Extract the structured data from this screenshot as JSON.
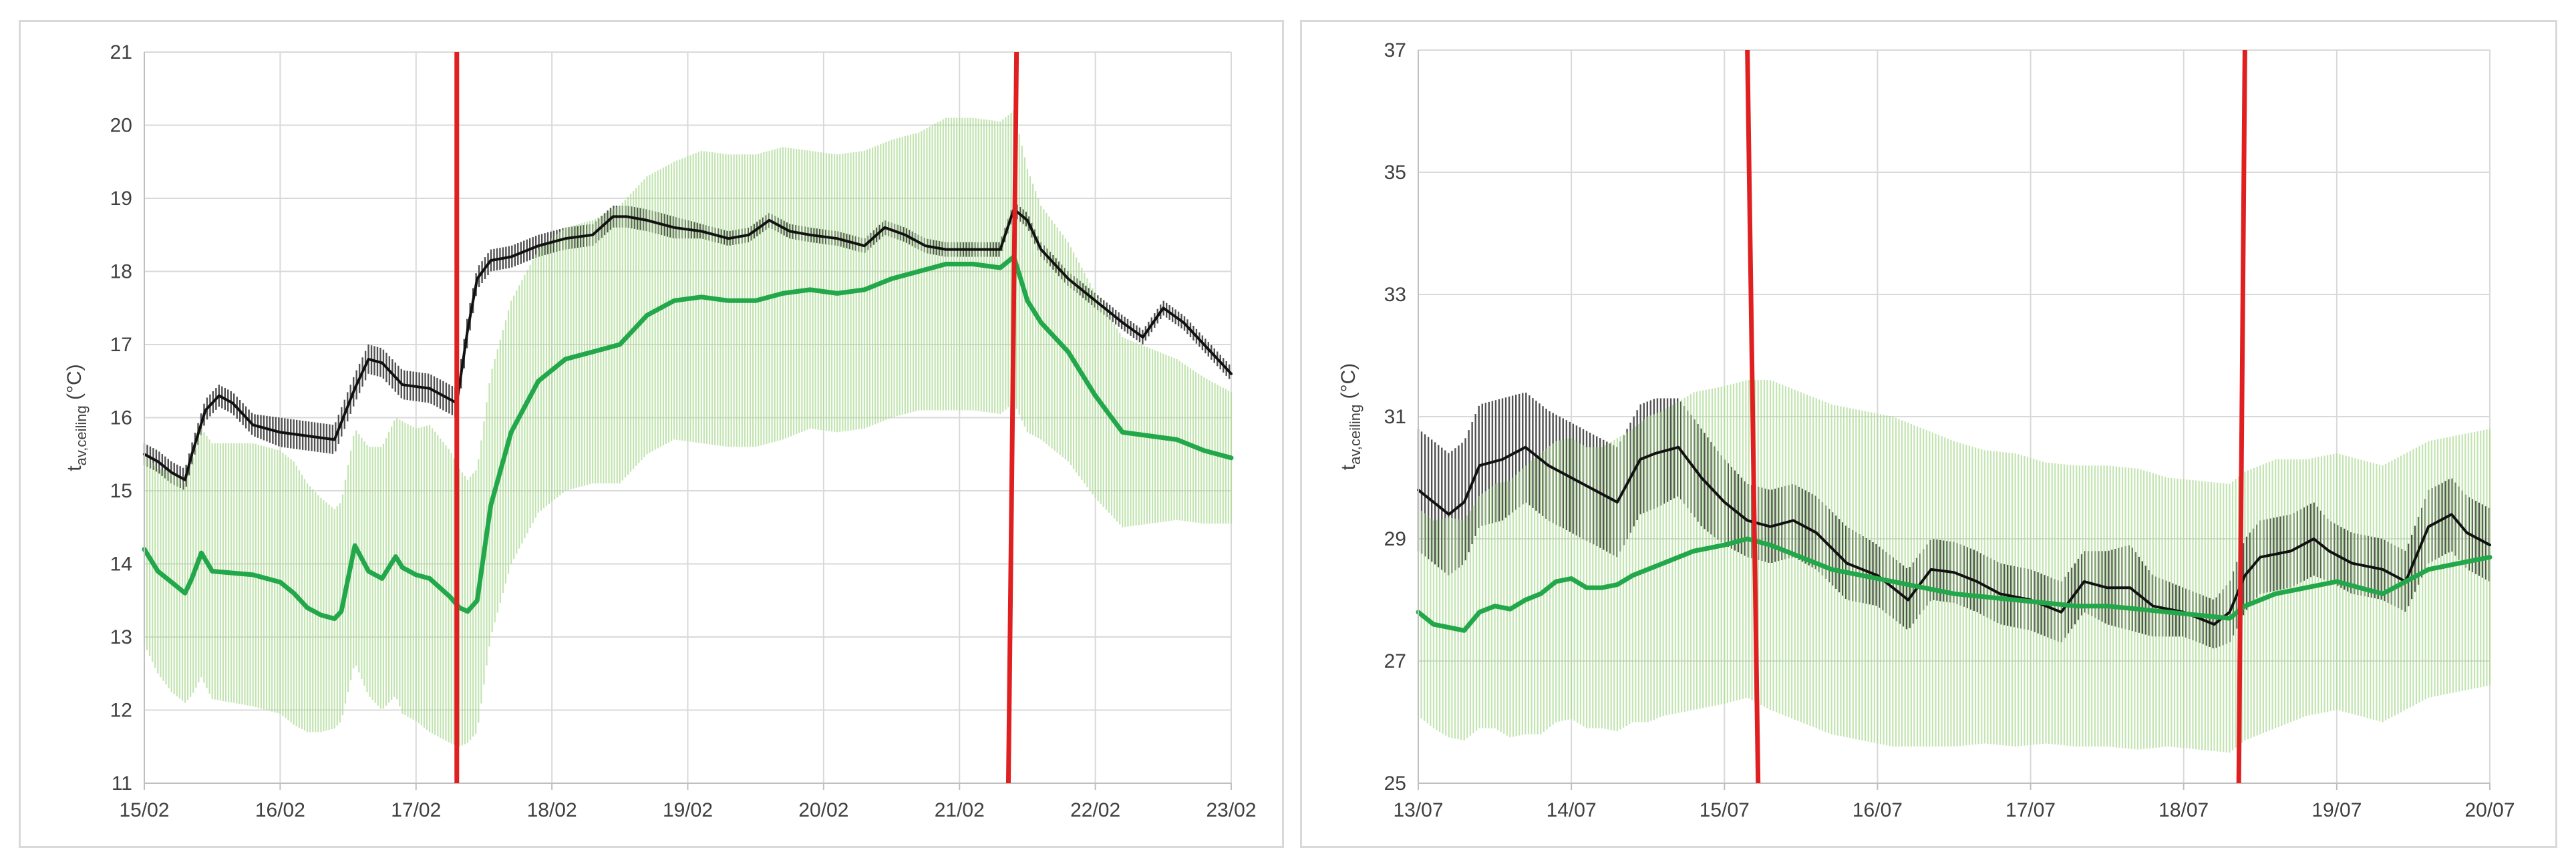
{
  "chart_data": [
    {
      "type": "line",
      "ylabel": {
        "main": "t",
        "sub": "av,ceiling",
        "unit": " (°C)"
      },
      "ylim": [
        11,
        21
      ],
      "yticks": [
        11,
        12,
        13,
        14,
        15,
        16,
        17,
        18,
        19,
        20,
        21
      ],
      "xlim": [
        0,
        8
      ],
      "xtick_labels": [
        "15/02",
        "16/02",
        "17/02",
        "18/02",
        "19/02",
        "20/02",
        "21/02",
        "22/02",
        "23/02"
      ],
      "grid": true,
      "vlines": {
        "color": "#e02020",
        "lines": [
          [
            2.3,
            2.3,
            11,
            21
          ],
          [
            6.42,
            6.36,
            21,
            11
          ]
        ]
      },
      "series": [
        {
          "color": "#111111",
          "x": [
            0,
            0.1,
            0.2,
            0.3,
            0.35,
            0.45,
            0.55,
            0.65,
            0.8,
            1,
            1.2,
            1.4,
            1.55,
            1.65,
            1.75,
            1.9,
            2.1,
            2.3,
            2.38,
            2.45,
            2.55,
            2.7,
            2.9,
            3.1,
            3.3,
            3.45,
            3.55,
            3.7,
            3.9,
            4.1,
            4.3,
            4.45,
            4.6,
            4.75,
            4.9,
            5.1,
            5.3,
            5.45,
            5.6,
            5.75,
            5.9,
            6.1,
            6.3,
            6.4,
            6.5,
            6.6,
            6.8,
            7,
            7.2,
            7.35,
            7.5,
            7.65,
            7.8,
            8
          ],
          "y": [
            15.5,
            15.4,
            15.25,
            15.15,
            15.5,
            16.1,
            16.3,
            16.2,
            15.9,
            15.8,
            15.75,
            15.7,
            16.4,
            16.8,
            16.75,
            16.45,
            16.4,
            16.2,
            17.2,
            17.9,
            18.15,
            18.2,
            18.35,
            18.45,
            18.5,
            18.75,
            18.75,
            18.7,
            18.6,
            18.55,
            18.45,
            18.5,
            18.7,
            18.55,
            18.5,
            18.45,
            18.35,
            18.6,
            18.5,
            18.35,
            18.3,
            18.3,
            18.3,
            18.85,
            18.7,
            18.3,
            17.9,
            17.6,
            17.3,
            17.1,
            17.5,
            17.3,
            17.0,
            16.6
          ],
          "err": [
            0.15,
            0.15,
            0.15,
            0.15,
            0.15,
            0.15,
            0.15,
            0.15,
            0.15,
            0.2,
            0.2,
            0.2,
            0.2,
            0.2,
            0.2,
            0.2,
            0.2,
            0.2,
            0.2,
            0.15,
            0.15,
            0.15,
            0.15,
            0.15,
            0.15,
            0.15,
            0.15,
            0.15,
            0.15,
            0.1,
            0.1,
            0.1,
            0.1,
            0.1,
            0.1,
            0.1,
            0.1,
            0.1,
            0.1,
            0.1,
            0.1,
            0.1,
            0.1,
            0.1,
            0.1,
            0.1,
            0.1,
            0.1,
            0.1,
            0.1,
            0.1,
            0.1,
            0.1,
            0.1
          ],
          "band_color": "#333333"
        },
        {
          "color": "#22a84a",
          "x": [
            0,
            0.1,
            0.2,
            0.3,
            0.35,
            0.42,
            0.5,
            0.8,
            1,
            1.1,
            1.2,
            1.3,
            1.4,
            1.45,
            1.55,
            1.65,
            1.75,
            1.85,
            1.9,
            2,
            2.1,
            2.25,
            2.32,
            2.38,
            2.45,
            2.55,
            2.7,
            2.9,
            3.1,
            3.3,
            3.5,
            3.7,
            3.9,
            4.1,
            4.3,
            4.5,
            4.7,
            4.9,
            5.1,
            5.3,
            5.5,
            5.7,
            5.9,
            6.1,
            6.3,
            6.4,
            6.5,
            6.6,
            6.8,
            7,
            7.2,
            7.4,
            7.6,
            7.8,
            8
          ],
          "y": [
            14.2,
            13.9,
            13.75,
            13.6,
            13.8,
            14.15,
            13.9,
            13.85,
            13.75,
            13.6,
            13.4,
            13.3,
            13.25,
            13.35,
            14.25,
            13.9,
            13.8,
            14.1,
            13.95,
            13.85,
            13.8,
            13.55,
            13.4,
            13.35,
            13.5,
            14.8,
            15.8,
            16.5,
            16.8,
            16.9,
            17.0,
            17.4,
            17.6,
            17.65,
            17.6,
            17.6,
            17.7,
            17.75,
            17.7,
            17.75,
            17.9,
            18.0,
            18.1,
            18.1,
            18.05,
            18.2,
            17.6,
            17.3,
            16.9,
            16.3,
            15.8,
            15.75,
            15.7,
            15.55,
            15.45
          ],
          "err": [
            1.3,
            1.4,
            1.5,
            1.5,
            1.6,
            1.7,
            1.75,
            1.8,
            1.8,
            1.8,
            1.7,
            1.6,
            1.5,
            1.5,
            1.6,
            1.7,
            1.8,
            1.9,
            2,
            2.0,
            2.1,
            2.0,
            1.9,
            1.8,
            1.8,
            1.8,
            1.8,
            1.8,
            1.8,
            1.8,
            1.9,
            1.9,
            1.9,
            2.0,
            2.0,
            2.0,
            2.0,
            1.9,
            1.9,
            1.9,
            1.9,
            1.9,
            2.0,
            2.0,
            2.0,
            2.0,
            1.8,
            1.6,
            1.5,
            1.4,
            1.3,
            1.2,
            1.1,
            1.0,
            0.9
          ],
          "band_color": "#a8d88f"
        }
      ]
    },
    {
      "type": "line",
      "ylabel": {
        "main": "t",
        "sub": "av,ceiling",
        "unit": " (°C)"
      },
      "ylim": [
        25,
        37
      ],
      "yticks": [
        25,
        27,
        29,
        31,
        33,
        35,
        37
      ],
      "xlim": [
        0,
        7
      ],
      "xtick_labels": [
        "13/07",
        "14/07",
        "15/07",
        "16/07",
        "17/07",
        "18/07",
        "19/07",
        "20/07"
      ],
      "grid": true,
      "vlines": {
        "color": "#e02020",
        "lines": [
          [
            2.15,
            2.22,
            37,
            25
          ],
          [
            5.4,
            5.36,
            37,
            25
          ]
        ]
      },
      "series": [
        {
          "color": "#111111",
          "x": [
            0,
            0.1,
            0.2,
            0.3,
            0.4,
            0.55,
            0.7,
            0.85,
            1,
            1.15,
            1.3,
            1.45,
            1.55,
            1.7,
            1.85,
            2,
            2.15,
            2.3,
            2.45,
            2.6,
            2.8,
            3,
            3.2,
            3.35,
            3.5,
            3.65,
            3.8,
            4,
            4.2,
            4.35,
            4.5,
            4.65,
            4.8,
            5,
            5.2,
            5.3,
            5.4,
            5.5,
            5.7,
            5.85,
            5.95,
            6.1,
            6.3,
            6.45,
            6.6,
            6.75,
            6.85,
            7
          ],
          "y": [
            29.8,
            29.6,
            29.4,
            29.6,
            30.2,
            30.3,
            30.5,
            30.2,
            30.0,
            29.8,
            29.6,
            30.3,
            30.4,
            30.5,
            30.0,
            29.6,
            29.3,
            29.2,
            29.3,
            29.1,
            28.6,
            28.4,
            28.0,
            28.5,
            28.45,
            28.3,
            28.1,
            28.0,
            27.8,
            28.3,
            28.2,
            28.2,
            27.9,
            27.8,
            27.6,
            27.8,
            28.4,
            28.7,
            28.8,
            29.0,
            28.8,
            28.6,
            28.5,
            28.3,
            29.2,
            29.4,
            29.1,
            28.9
          ],
          "err": [
            1,
            1,
            1,
            1,
            1,
            1,
            0.9,
            0.9,
            0.9,
            0.9,
            0.9,
            0.9,
            0.9,
            0.8,
            0.8,
            0.7,
            0.6,
            0.6,
            0.6,
            0.6,
            0.6,
            0.5,
            0.5,
            0.5,
            0.5,
            0.5,
            0.5,
            0.5,
            0.5,
            0.5,
            0.6,
            0.7,
            0.5,
            0.4,
            0.4,
            0.5,
            0.6,
            0.6,
            0.6,
            0.6,
            0.5,
            0.5,
            0.5,
            0.5,
            0.6,
            0.6,
            0.6,
            0.6
          ],
          "band_color": "#333333"
        },
        {
          "color": "#22a84a",
          "x": [
            0,
            0.1,
            0.2,
            0.3,
            0.4,
            0.5,
            0.6,
            0.7,
            0.8,
            0.9,
            1,
            1.1,
            1.2,
            1.3,
            1.4,
            1.5,
            1.6,
            1.8,
            2,
            2.15,
            2.3,
            2.5,
            2.7,
            2.9,
            3.1,
            3.3,
            3.5,
            3.7,
            3.9,
            4.1,
            4.3,
            4.5,
            4.7,
            4.9,
            5.1,
            5.3,
            5.4,
            5.5,
            5.6,
            5.8,
            6,
            6.15,
            6.3,
            6.45,
            6.6,
            6.8,
            7
          ],
          "y": [
            27.8,
            27.6,
            27.55,
            27.5,
            27.8,
            27.9,
            27.85,
            28.0,
            28.1,
            28.3,
            28.35,
            28.2,
            28.2,
            28.25,
            28.4,
            28.5,
            28.6,
            28.8,
            28.9,
            29.0,
            28.9,
            28.7,
            28.5,
            28.4,
            28.3,
            28.2,
            28.1,
            28.05,
            28.0,
            27.95,
            27.9,
            27.9,
            27.85,
            27.8,
            27.75,
            27.7,
            27.9,
            28.0,
            28.1,
            28.2,
            28.3,
            28.2,
            28.1,
            28.3,
            28.5,
            28.6,
            28.7
          ],
          "err": [
            1.7,
            1.7,
            1.8,
            1.8,
            1.9,
            2.0,
            2.1,
            2.2,
            2.3,
            2.3,
            2.3,
            2.3,
            2.3,
            2.4,
            2.4,
            2.5,
            2.5,
            2.6,
            2.6,
            2.6,
            2.7,
            2.7,
            2.7,
            2.7,
            2.7,
            2.6,
            2.5,
            2.4,
            2.4,
            2.3,
            2.3,
            2.3,
            2.3,
            2.2,
            2.2,
            2.2,
            2.2,
            2.2,
            2.2,
            2.1,
            2.1,
            2.1,
            2.1,
            2.1,
            2.1,
            2.1,
            2.1
          ],
          "band_color": "#a8d88f"
        }
      ]
    }
  ]
}
